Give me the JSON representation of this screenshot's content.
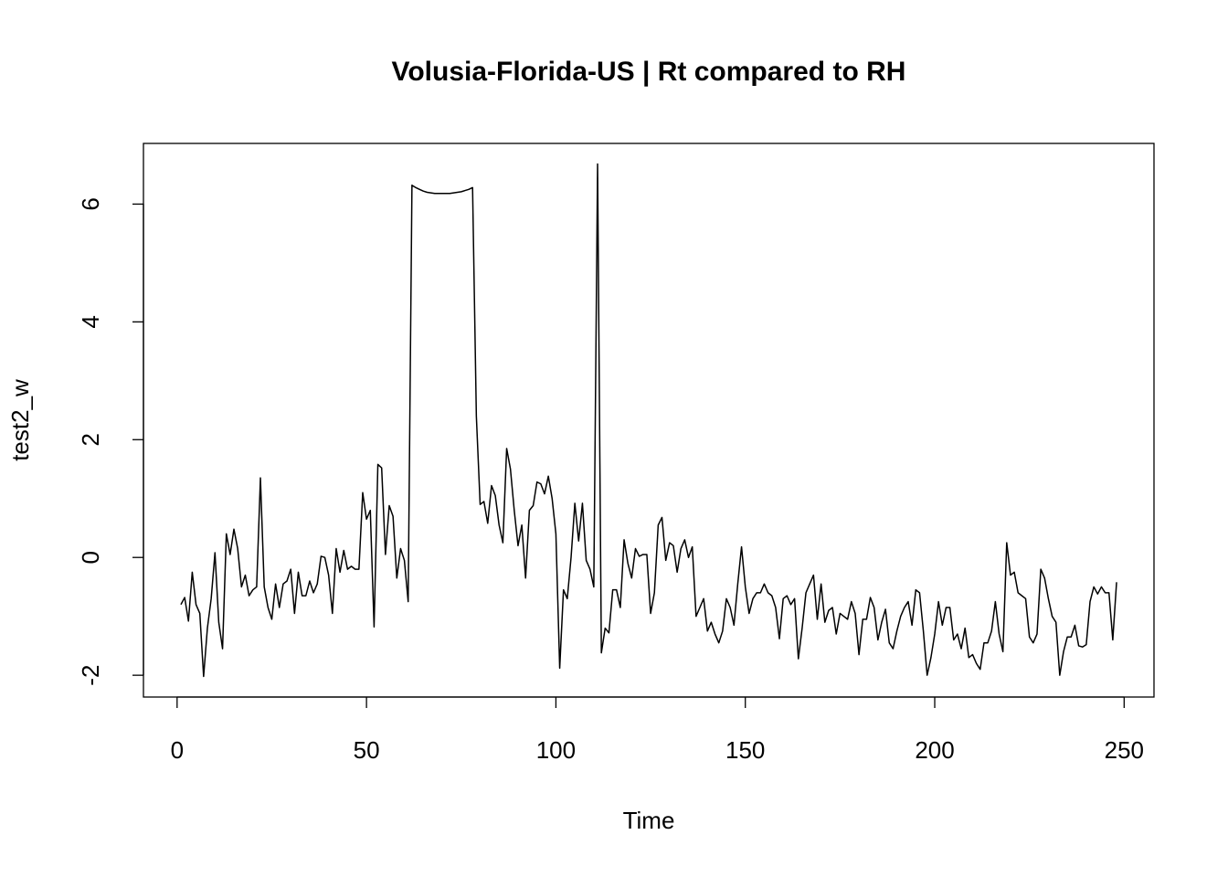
{
  "chart_data": {
    "type": "line",
    "title": "Volusia-Florida-US | Rt compared to RH",
    "x_label": "Time",
    "y_label": "test2_w",
    "color": "#000000",
    "x": [
      1,
      2,
      3,
      4,
      5,
      6,
      7,
      8,
      9,
      10,
      11,
      12,
      13,
      14,
      15,
      16,
      17,
      18,
      19,
      20,
      21,
      22,
      23,
      24,
      25,
      26,
      27,
      28,
      29,
      30,
      31,
      32,
      33,
      34,
      35,
      36,
      37,
      38,
      39,
      40,
      41,
      42,
      43,
      44,
      45,
      46,
      47,
      48,
      49,
      50,
      51,
      52,
      53,
      54,
      55,
      56,
      57,
      58,
      59,
      60,
      61,
      62,
      63,
      64,
      65,
      66,
      67,
      68,
      69,
      70,
      71,
      72,
      73,
      74,
      75,
      76,
      77,
      78,
      79,
      80,
      81,
      82,
      83,
      84,
      85,
      86,
      87,
      88,
      89,
      90,
      91,
      92,
      93,
      94,
      95,
      96,
      97,
      98,
      99,
      100,
      101,
      102,
      103,
      104,
      105,
      106,
      107,
      108,
      109,
      110,
      111,
      112,
      113,
      114,
      115,
      116,
      117,
      118,
      119,
      120,
      121,
      122,
      123,
      124,
      125,
      126,
      127,
      128,
      129,
      130,
      131,
      132,
      133,
      134,
      135,
      136,
      137,
      138,
      139,
      140,
      141,
      142,
      143,
      144,
      145,
      146,
      147,
      148,
      149,
      150,
      151,
      152,
      153,
      154,
      155,
      156,
      157,
      158,
      159,
      160,
      161,
      162,
      163,
      164,
      165,
      166,
      167,
      168,
      169,
      170,
      171,
      172,
      173,
      174,
      175,
      176,
      177,
      178,
      179,
      180,
      181,
      182,
      183,
      184,
      185,
      186,
      187,
      188,
      189,
      190,
      191,
      192,
      193,
      194,
      195,
      196,
      197,
      198,
      199,
      200,
      201,
      202,
      203,
      204,
      205,
      206,
      207,
      208,
      209,
      210,
      211,
      212,
      213,
      214,
      215,
      216,
      217,
      218,
      219,
      220,
      221,
      222,
      223,
      224,
      225,
      226,
      227,
      228,
      229,
      230,
      231,
      232,
      233,
      234,
      235,
      236,
      237,
      238,
      239,
      240,
      241,
      242,
      243,
      244,
      245,
      246,
      247,
      248
    ],
    "values": [
      -0.8,
      -0.68,
      -1.08,
      -0.25,
      -0.8,
      -0.95,
      -2.02,
      -1.2,
      -0.7,
      0.08,
      -1.1,
      -1.55,
      0.4,
      0.05,
      0.48,
      0.15,
      -0.5,
      -0.3,
      -0.65,
      -0.55,
      -0.5,
      1.35,
      -0.5,
      -0.85,
      -1.05,
      -0.45,
      -0.85,
      -0.45,
      -0.4,
      -0.2,
      -0.95,
      -0.25,
      -0.65,
      -0.65,
      -0.4,
      -0.6,
      -0.45,
      0.02,
      0,
      -0.3,
      -0.95,
      0.15,
      -0.25,
      0.12,
      -0.2,
      -0.15,
      -0.2,
      -0.2,
      1.1,
      0.65,
      0.8,
      -1.18,
      1.58,
      1.52,
      0.05,
      0.88,
      0.7,
      -0.35,
      0.15,
      -0.05,
      -0.75,
      6.32,
      6.28,
      6.25,
      6.22,
      6.2,
      6.19,
      6.18,
      6.18,
      6.18,
      6.18,
      6.18,
      6.19,
      6.2,
      6.21,
      6.23,
      6.25,
      6.28,
      2.4,
      0.9,
      0.95,
      0.58,
      1.22,
      1.05,
      0.55,
      0.25,
      1.85,
      1.5,
      0.8,
      0.2,
      0.55,
      -0.35,
      0.8,
      0.88,
      1.28,
      1.25,
      1.08,
      1.38,
      1.0,
      0.4,
      -1.88,
      -0.55,
      -0.7,
      0,
      0.92,
      0.28,
      0.92,
      -0.05,
      -0.2,
      -0.5,
      6.68,
      -1.62,
      -1.2,
      -1.28,
      -0.55,
      -0.55,
      -0.85,
      0.3,
      -0.1,
      -0.35,
      0.15,
      0.02,
      0.05,
      0.05,
      -0.95,
      -0.6,
      0.55,
      0.68,
      -0.05,
      0.25,
      0.2,
      -0.25,
      0.15,
      0.3,
      0,
      0.18,
      -1.0,
      -0.85,
      -0.7,
      -1.25,
      -1.1,
      -1.3,
      -1.45,
      -1.25,
      -0.7,
      -0.85,
      -1.15,
      -0.45,
      0.18,
      -0.5,
      -0.95,
      -0.7,
      -0.6,
      -0.6,
      -0.45,
      -0.6,
      -0.65,
      -0.85,
      -1.38,
      -0.7,
      -0.65,
      -0.8,
      -0.7,
      -1.72,
      -1.2,
      -0.6,
      -0.45,
      -0.3,
      -1.05,
      -0.45,
      -1.1,
      -0.9,
      -0.85,
      -1.3,
      -0.95,
      -1.0,
      -1.05,
      -0.75,
      -0.95,
      -1.65,
      -1.05,
      -1.05,
      -0.68,
      -0.85,
      -1.4,
      -1.1,
      -0.88,
      -1.45,
      -1.55,
      -1.25,
      -1.0,
      -0.85,
      -0.75,
      -1.15,
      -0.55,
      -0.6,
      -1.25,
      -2.0,
      -1.7,
      -1.3,
      -0.75,
      -1.15,
      -0.85,
      -0.85,
      -1.4,
      -1.3,
      -1.55,
      -1.2,
      -1.7,
      -1.65,
      -1.8,
      -1.9,
      -1.45,
      -1.45,
      -1.25,
      -0.75,
      -1.3,
      -1.6,
      0.25,
      -0.3,
      -0.25,
      -0.6,
      -0.65,
      -0.7,
      -1.35,
      -1.45,
      -1.3,
      -0.2,
      -0.35,
      -0.7,
      -1.0,
      -1.1,
      -2.0,
      -1.6,
      -1.35,
      -1.35,
      -1.15,
      -1.5,
      -1.52,
      -1.48,
      -0.75,
      -0.5,
      -0.62,
      -0.5,
      -0.6,
      -0.6,
      -1.4,
      -0.42
    ],
    "xlim": [
      -8.88,
      257.88
    ],
    "ylim": [
      -2.37,
      7.03
    ],
    "xticks": [
      0,
      50,
      100,
      150,
      200,
      250
    ],
    "yticks": [
      -2,
      0,
      2,
      4,
      6
    ]
  }
}
